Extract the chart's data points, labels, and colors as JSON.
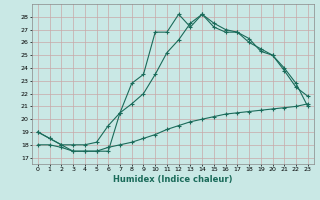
{
  "xlabel": "Humidex (Indice chaleur)",
  "xlim": [
    -0.5,
    23.5
  ],
  "ylim": [
    16.5,
    29.0
  ],
  "yticks": [
    17,
    18,
    19,
    20,
    21,
    22,
    23,
    24,
    25,
    26,
    27,
    28
  ],
  "xticks": [
    0,
    1,
    2,
    3,
    4,
    5,
    6,
    7,
    8,
    9,
    10,
    11,
    12,
    13,
    14,
    15,
    16,
    17,
    18,
    19,
    20,
    21,
    22,
    23
  ],
  "bg_color": "#c9e8e5",
  "grid_color": "#c8a8a8",
  "line_color": "#1a6b5a",
  "line1_x": [
    0,
    1,
    2,
    3,
    4,
    5,
    6,
    7,
    8,
    9,
    10,
    11,
    12,
    13,
    14,
    15,
    16,
    17,
    18,
    19,
    20,
    21,
    22,
    23
  ],
  "line1_y": [
    19.0,
    18.5,
    18.0,
    17.5,
    17.5,
    17.5,
    17.5,
    20.5,
    22.8,
    23.5,
    26.8,
    26.8,
    28.2,
    27.2,
    28.2,
    27.2,
    26.8,
    26.8,
    26.0,
    25.5,
    25.0,
    24.0,
    22.8,
    21.0
  ],
  "line2_x": [
    0,
    1,
    2,
    3,
    4,
    5,
    6,
    7,
    8,
    9,
    10,
    11,
    12,
    13,
    14,
    15,
    16,
    17,
    18,
    19,
    20,
    21,
    22,
    23
  ],
  "line2_y": [
    19.0,
    18.5,
    18.0,
    18.0,
    18.0,
    18.2,
    19.5,
    20.5,
    21.2,
    22.0,
    23.5,
    25.2,
    26.2,
    27.5,
    28.2,
    27.5,
    27.0,
    26.8,
    26.3,
    25.3,
    25.0,
    23.8,
    22.5,
    21.8
  ],
  "line3_x": [
    0,
    1,
    2,
    3,
    4,
    5,
    6,
    7,
    8,
    9,
    10,
    11,
    12,
    13,
    14,
    15,
    16,
    17,
    18,
    19,
    20,
    21,
    22,
    23
  ],
  "line3_y": [
    18.0,
    18.0,
    17.8,
    17.5,
    17.5,
    17.5,
    17.8,
    18.0,
    18.2,
    18.5,
    18.8,
    19.2,
    19.5,
    19.8,
    20.0,
    20.2,
    20.4,
    20.5,
    20.6,
    20.7,
    20.8,
    20.9,
    21.0,
    21.2
  ]
}
